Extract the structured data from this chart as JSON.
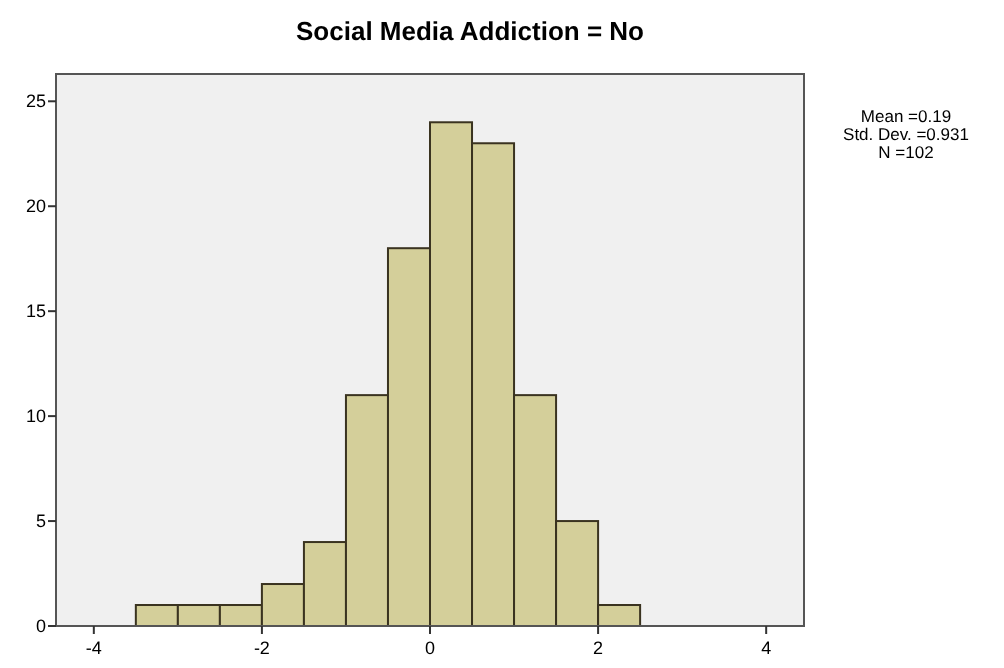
{
  "chart_data": {
    "type": "histogram",
    "title": "Social Media Addiction = No",
    "bins": [
      -3.5,
      -3,
      -2.5,
      -2,
      -1.5,
      -1,
      -0.5,
      0,
      0.5,
      1,
      1.5,
      2,
      2.5
    ],
    "values": [
      1,
      1,
      1,
      2,
      4,
      11,
      18,
      24,
      23,
      11,
      5,
      1
    ],
    "color": "#d4cf9a",
    "xlim": [
      -4.45,
      4.45
    ],
    "xticks": [
      -4,
      -2,
      0,
      2,
      4
    ],
    "ylim": [
      0,
      26.3
    ],
    "yticks": [
      0,
      5,
      10,
      15,
      20,
      25
    ],
    "grid": false,
    "annotations": [
      "Mean =0.19",
      "Std. Dev. =0.931",
      "N =102"
    ]
  }
}
